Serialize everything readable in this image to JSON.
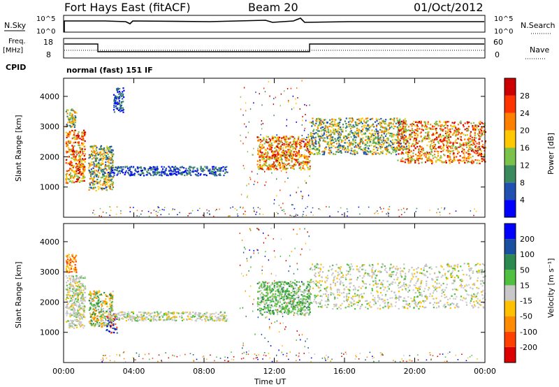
{
  "header": {
    "station": "Fort Hays East (fitACF)",
    "beam": "Beam 20",
    "date": "01/Oct/2012"
  },
  "status_panels": {
    "nsky_label": "N.Sky",
    "nsky_ticks": [
      "10^5",
      "10^0"
    ],
    "nsearch_label": "N.Search",
    "nsearch_ticks": [
      "10^5",
      "10^0"
    ],
    "freq_label": "Freq.",
    "freq_unit": "[MHz]",
    "freq_ticks": [
      "18",
      "8"
    ],
    "nave_label": "Nave",
    "nave_ticks": [
      "60",
      "0"
    ],
    "cpid_label": "CPID",
    "cpid_value": "normal (fast) 151 IF"
  },
  "chart_data": [
    {
      "type": "heatmap",
      "panel": "power",
      "ylabel": "Slant Range [km]",
      "yticks": [
        1000,
        2000,
        3000,
        4000
      ],
      "ylim": [
        0,
        4600
      ],
      "x_hours": [
        0,
        24
      ],
      "colorbar": {
        "label": "Power [dB]",
        "ticks": [
          "28",
          "24",
          "20",
          "16",
          "12",
          "8",
          "4"
        ],
        "colors": [
          "#0000ff",
          "#2050b0",
          "#3b8a5e",
          "#7ac24a",
          "#ffc800",
          "#ff8000",
          "#ff3300",
          "#cc0000"
        ]
      },
      "echo_regions": [
        {
          "t0": 0.1,
          "t1": 1.2,
          "r0": 1150,
          "r1": 2900,
          "level": "high"
        },
        {
          "t0": 0.1,
          "t1": 0.7,
          "r0": 3000,
          "r1": 3600,
          "level": "mid"
        },
        {
          "t0": 1.4,
          "t1": 2.8,
          "r0": 900,
          "r1": 2400,
          "level": "mid"
        },
        {
          "t0": 2.8,
          "t1": 3.4,
          "r0": 3500,
          "r1": 4300,
          "level": "low"
        },
        {
          "t0": 2.5,
          "t1": 9.3,
          "r0": 1400,
          "r1": 1700,
          "level": "low"
        },
        {
          "t0": 11.0,
          "t1": 14.0,
          "r0": 1600,
          "r1": 2700,
          "level": "high"
        },
        {
          "t0": 14.0,
          "t1": 19.5,
          "r0": 2100,
          "r1": 3300,
          "level": "mid"
        },
        {
          "t0": 19.0,
          "t1": 24.0,
          "r0": 1800,
          "r1": 3200,
          "level": "high"
        }
      ]
    },
    {
      "type": "heatmap",
      "panel": "velocity",
      "ylabel": "Slant Range [km]",
      "yticks": [
        1000,
        2000,
        3000,
        4000
      ],
      "ylim": [
        0,
        4600
      ],
      "x_hours": [
        0,
        24
      ],
      "xlabel": "Time UT",
      "xticks": [
        "00:00",
        "04:00",
        "08:00",
        "12:00",
        "16:00",
        "20:00",
        "00:00"
      ],
      "colorbar": {
        "label": "Velocity [m s⁻¹]",
        "ticks": [
          "200",
          "100",
          "50",
          "15",
          "-15",
          "-50",
          "-100",
          "-200"
        ],
        "colors": [
          "#dd0000",
          "#ff4000",
          "#ff8c00",
          "#ffc000",
          "#c8c8c8",
          "#50c040",
          "#2a8a50",
          "#1a50a0",
          "#0000ff"
        ]
      },
      "echo_regions": [
        {
          "t0": 0.1,
          "t1": 1.2,
          "r0": 1150,
          "r1": 2900,
          "level": "ground"
        },
        {
          "t0": 0.1,
          "t1": 0.7,
          "r0": 3000,
          "r1": 3600,
          "level": "neg"
        },
        {
          "t0": 1.4,
          "t1": 2.8,
          "r0": 1200,
          "r1": 2400,
          "level": "mix"
        },
        {
          "t0": 2.4,
          "t1": 3.0,
          "r0": 1000,
          "r1": 1700,
          "level": "pos"
        },
        {
          "t0": 2.5,
          "t1": 9.3,
          "r0": 1400,
          "r1": 1700,
          "level": "ground"
        },
        {
          "t0": 11.0,
          "t1": 14.0,
          "r0": 1600,
          "r1": 2700,
          "level": "slowpos"
        },
        {
          "t0": 14.0,
          "t1": 24.0,
          "r0": 1800,
          "r1": 3300,
          "level": "ground"
        }
      ]
    }
  ]
}
